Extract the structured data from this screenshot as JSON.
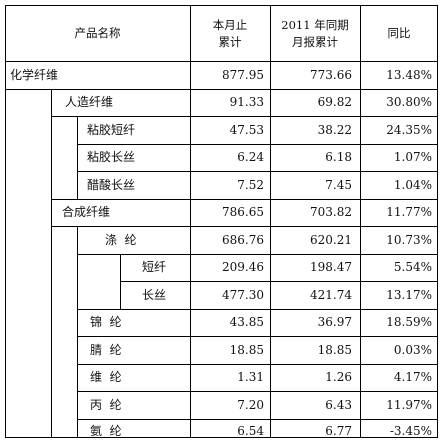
{
  "header": {
    "product_name": "产品名称",
    "current_cumulative": "本月止累计",
    "current_cumulative_lines": [
      "本月止",
      "累计"
    ],
    "prior_period": "2011年同期月报累计",
    "prior_period_lines": [
      "2011 年同期",
      "月报累计"
    ],
    "yoy": "同比"
  },
  "rows": [
    {
      "name": "化学纤维",
      "current": "877.95",
      "prior": "773.66",
      "yoy": "13.48%"
    },
    {
      "name": "人造纤维",
      "current": "91.33",
      "prior": "69.82",
      "yoy": "30.80%"
    },
    {
      "name": "粘胶短纤",
      "current": "47.53",
      "prior": "38.22",
      "yoy": "24.35%"
    },
    {
      "name": "粘胶长丝",
      "current": "6.24",
      "prior": "6.18",
      "yoy": "1.07%"
    },
    {
      "name": "醋酸长丝",
      "current": "7.52",
      "prior": "7.45",
      "yoy": "1.04%"
    },
    {
      "name": "合成纤维",
      "current": "786.65",
      "prior": "703.82",
      "yoy": "11.77%"
    },
    {
      "name": "涤  纶",
      "current": "686.76",
      "prior": "620.21",
      "yoy": "10.73%"
    },
    {
      "name": "短纤",
      "current": "209.46",
      "prior": "198.47",
      "yoy": "5.54%"
    },
    {
      "name": "长丝",
      "current": "477.30",
      "prior": "421.74",
      "yoy": "13.17%"
    },
    {
      "name": "锦  纶",
      "current": "43.85",
      "prior": "36.97",
      "yoy": "18.59%"
    },
    {
      "name": "腈  纶",
      "current": "18.85",
      "prior": "18.85",
      "yoy": "0.03%"
    },
    {
      "name": "维  纶",
      "current": "1.31",
      "prior": "1.26",
      "yoy": "4.17%"
    },
    {
      "name": "丙  纶",
      "current": "7.20",
      "prior": "6.43",
      "yoy": "11.97%"
    },
    {
      "name": "氨  纶",
      "current": "6.54",
      "prior": "6.77",
      "yoy": "-3.45%"
    }
  ]
}
